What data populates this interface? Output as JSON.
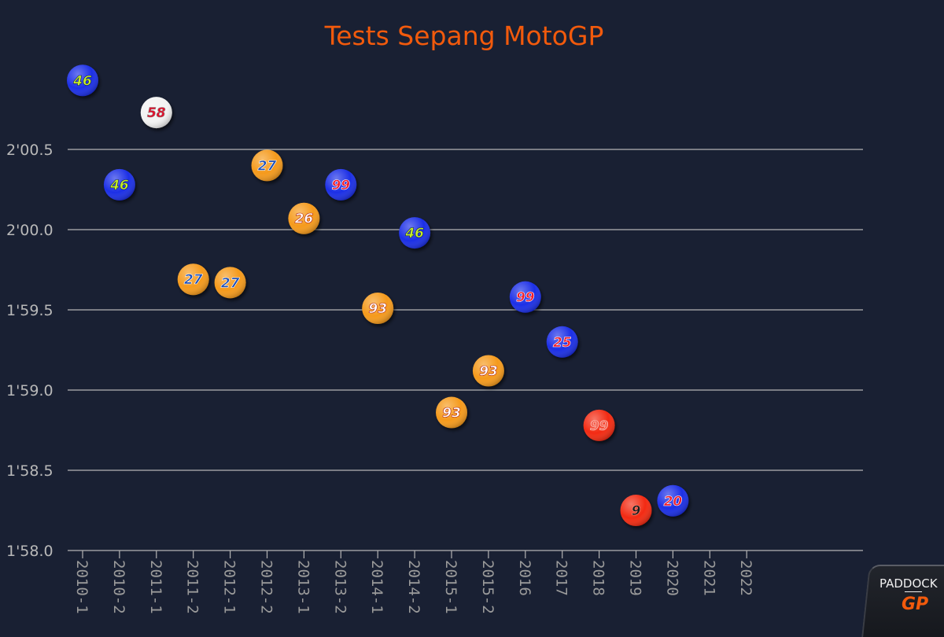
{
  "chart_data": {
    "type": "scatter",
    "title": "Tests Sepang MotoGP",
    "xlabel": "",
    "ylabel": "",
    "categories": [
      "2010-1",
      "2010-2",
      "2011-1",
      "2011-2",
      "2012-1",
      "2012-2",
      "2013-1",
      "2013-2",
      "2014-1",
      "2014-2",
      "2015-1",
      "2015-2",
      "2016",
      "2017",
      "2018",
      "2019",
      "2020",
      "2021",
      "2022"
    ],
    "ylim_seconds": [
      118.0,
      121.0
    ],
    "yticks": [
      {
        "value": 118.0,
        "label": "1'58.0"
      },
      {
        "value": 118.5,
        "label": "1'58.5"
      },
      {
        "value": 119.0,
        "label": "1'59.0"
      },
      {
        "value": 119.5,
        "label": "1'59.5"
      },
      {
        "value": 120.0,
        "label": "2'00.0"
      },
      {
        "value": 120.5,
        "label": "2'00.5"
      }
    ],
    "grid": true,
    "legend": "none",
    "points": [
      {
        "x": "2010-1",
        "y": 120.93,
        "rider": "46",
        "style": "blue-yellow"
      },
      {
        "x": "2010-2",
        "y": 120.28,
        "rider": "46",
        "style": "blue-yellow"
      },
      {
        "x": "2011-1",
        "y": 120.73,
        "rider": "58",
        "style": "white-red"
      },
      {
        "x": "2011-2",
        "y": 119.69,
        "rider": "27",
        "style": "orange-blue"
      },
      {
        "x": "2012-1",
        "y": 119.67,
        "rider": "27",
        "style": "orange-blue"
      },
      {
        "x": "2012-2",
        "y": 120.4,
        "rider": "27",
        "style": "orange-blue"
      },
      {
        "x": "2013-1",
        "y": 120.07,
        "rider": "26",
        "style": "orange-white"
      },
      {
        "x": "2013-2",
        "y": 120.28,
        "rider": "99",
        "style": "blue-red"
      },
      {
        "x": "2014-1",
        "y": 119.51,
        "rider": "93",
        "style": "orange-white"
      },
      {
        "x": "2014-2",
        "y": 119.98,
        "rider": "46",
        "style": "blue-yellow"
      },
      {
        "x": "2015-1",
        "y": 118.86,
        "rider": "93",
        "style": "orange-white"
      },
      {
        "x": "2015-2",
        "y": 119.12,
        "rider": "93",
        "style": "orange-white"
      },
      {
        "x": "2016",
        "y": 119.58,
        "rider": "99",
        "style": "blue-red"
      },
      {
        "x": "2017",
        "y": 119.3,
        "rider": "25",
        "style": "blue-red"
      },
      {
        "x": "2018",
        "y": 118.78,
        "rider": "99",
        "style": "red-red"
      },
      {
        "x": "2019",
        "y": 118.25,
        "rider": "9",
        "style": "red-black"
      },
      {
        "x": "2020",
        "y": 118.31,
        "rider": "20",
        "style": "blue-red"
      }
    ]
  },
  "styles": {
    "blue-yellow": {
      "fill": "#1c2fe6",
      "text": "#c8f020",
      "stroke": "#0a1a60"
    },
    "white-red": {
      "fill": "#f2f2f2",
      "text": "#e5102a",
      "stroke": "#888888"
    },
    "orange-blue": {
      "fill": "#f59a1c",
      "text": "#1d4fb8",
      "stroke": "#ffffff"
    },
    "orange-white": {
      "fill": "#f59a1c",
      "text": "#ffffff",
      "stroke": "#b02010"
    },
    "blue-red": {
      "fill": "#1c2fe6",
      "text": "#f01a2a",
      "stroke": "#ffffff"
    },
    "red-red": {
      "fill": "#f32a12",
      "text": "#f36a5a",
      "stroke": "#ffd0c8"
    },
    "red-black": {
      "fill": "#f32a12",
      "text": "#1a1a1a",
      "stroke": "#ff9080"
    }
  },
  "logo": {
    "top": "PADDOCK",
    "bottom": "GP"
  }
}
